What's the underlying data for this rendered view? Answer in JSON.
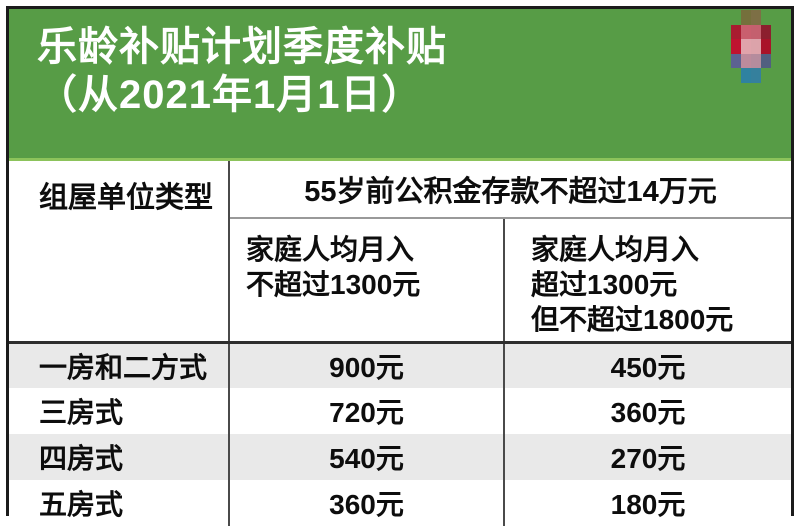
{
  "banner": {
    "title_line1": "乐龄补贴计划季度补贴",
    "title_line2": "（从2021年1月1日）"
  },
  "logo": {
    "name": "pixelated-redacted-logo",
    "pixels": [
      "rgba(0,0,0,0)",
      "#75703c",
      "#7d6f45",
      "rgba(0,0,0,0)",
      "#a91c30",
      "#c95f6e",
      "#c4606e",
      "#8c1f2e",
      "#bf1330",
      "#e0a3ab",
      "#dca3aa",
      "#a91329",
      "#5c6292",
      "#bd8b9c",
      "#b58c9d",
      "#515f80",
      "rgba(0,0,0,0)",
      "#2f82a0",
      "#35809d",
      "rgba(0,0,0,0)"
    ]
  },
  "table": {
    "col1_header": "组屋单位类型",
    "span_header": "55岁前公积金存款不超过14万元",
    "sub_col2_lines": [
      "家庭人均月入",
      "不超过1300元"
    ],
    "sub_col3_lines": [
      "家庭人均月入",
      "超过1300元",
      "但不超过1800元"
    ],
    "rows": [
      {
        "type": "一房和二方式",
        "v1": "900元",
        "v2": "450元"
      },
      {
        "type": "三房式",
        "v1": "720元",
        "v2": "360元"
      },
      {
        "type": "四房式",
        "v1": "540元",
        "v2": "270元"
      },
      {
        "type": "五房式",
        "v1": "360元",
        "v2": "180元"
      }
    ]
  },
  "colors": {
    "banner-green": "#579c46",
    "banner-divider": "#8cc35b",
    "frame-border": "#1b1b1b",
    "row-gray": "#e9e9e9",
    "grid-dark": "#4a4a4a",
    "grid-heavy": "#2e2e2e",
    "grid-light": "#999999"
  },
  "chart_data": {
    "type": "table",
    "title": "乐龄补贴计划季度补贴（从2021年1月1日）",
    "column_group_header": "55岁前公积金存款不超过14万元",
    "columns": [
      "组屋单位类型",
      "家庭人均月入不超过1300元",
      "家庭人均月入超过1300元但不超过1800元"
    ],
    "rows": [
      [
        "一房和二方式",
        "900元",
        "450元"
      ],
      [
        "三房式",
        "720元",
        "360元"
      ],
      [
        "四房式",
        "540元",
        "270元"
      ],
      [
        "五房式",
        "360元",
        "180元"
      ]
    ],
    "values_unit": "元",
    "subsidy_values": {
      "income_le_1300": [
        900,
        720,
        540,
        360
      ],
      "income_1300_to_1800": [
        450,
        360,
        270,
        180
      ]
    }
  }
}
